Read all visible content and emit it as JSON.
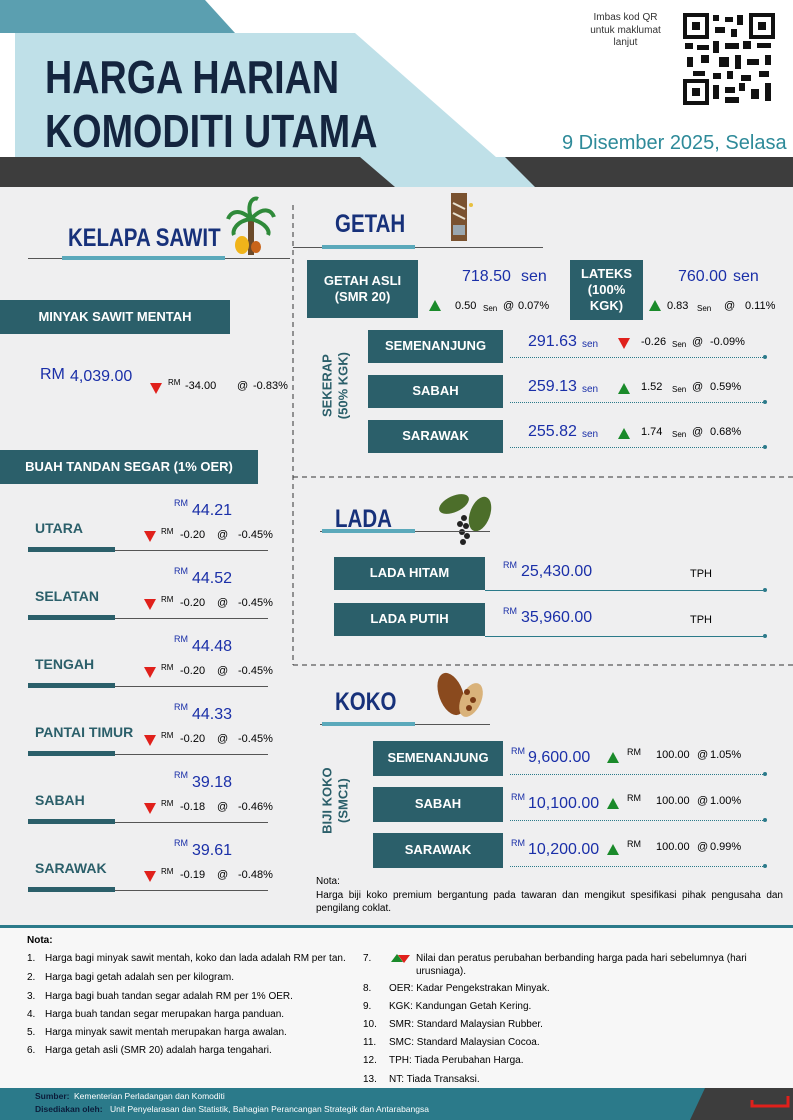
{
  "header": {
    "title_line1": "HARGA HARIAN",
    "title_line2": "KOMODITI UTAMA",
    "qr_text": "Imbas kod QR untuk maklumat lanjut",
    "date": "9 Disember 2025, Selasa"
  },
  "kelapa_sawit": {
    "title": "KELAPA SAWIT",
    "cpo": {
      "label": "MINYAK SAWIT MENTAH",
      "currency": "RM",
      "price": "4,039.00",
      "change_currency": "RM",
      "change": "-34.00",
      "at": "@",
      "pct": "-0.83%"
    },
    "ffb": {
      "label": "BUAH TANDAN SEGAR (1% OER)",
      "regions": [
        {
          "name": "UTARA",
          "currency": "RM",
          "price": "44.21",
          "change_currency": "RM",
          "change": "-0.20",
          "at": "@",
          "pct": "-0.45%"
        },
        {
          "name": "SELATAN",
          "currency": "RM",
          "price": "44.52",
          "change_currency": "RM",
          "change": "-0.20",
          "at": "@",
          "pct": "-0.45%"
        },
        {
          "name": "TENGAH",
          "currency": "RM",
          "price": "44.48",
          "change_currency": "RM",
          "change": "-0.20",
          "at": "@",
          "pct": "-0.45%"
        },
        {
          "name": "PANTAI TIMUR",
          "currency": "RM",
          "price": "44.33",
          "change_currency": "RM",
          "change": "-0.20",
          "at": "@",
          "pct": "-0.45%"
        },
        {
          "name": "SABAH",
          "currency": "RM",
          "price": "39.18",
          "change_currency": "RM",
          "change": "-0.18",
          "at": "@",
          "pct": "-0.46%"
        },
        {
          "name": "SARAWAK",
          "currency": "RM",
          "price": "39.61",
          "change_currency": "RM",
          "change": "-0.19",
          "at": "@",
          "pct": "-0.48%"
        }
      ]
    }
  },
  "getah": {
    "title": "GETAH",
    "smr20": {
      "label": "GETAH ASLI (SMR 20)",
      "price": "718.50",
      "unit": "sen",
      "change": "0.50",
      "change_unit": "Sen",
      "at": "@",
      "pct": "0.07%"
    },
    "lateks": {
      "label": "LATEKS (100% KGK)",
      "price": "760.00",
      "unit": "sen",
      "change": "0.83",
      "change_unit": "Sen",
      "at": "@",
      "pct": "0.11%"
    },
    "sekerap": {
      "label": "SEKERAP (50% KGK)",
      "rows": [
        {
          "name": "SEMENANJUNG",
          "price": "291.63",
          "unit": "sen",
          "change": "-0.26",
          "change_unit": "Sen",
          "at": "@",
          "pct": "-0.09%"
        },
        {
          "name": "SABAH",
          "price": "259.13",
          "unit": "sen",
          "change": "1.52",
          "change_unit": "Sen",
          "at": "@",
          "pct": "0.59%"
        },
        {
          "name": "SARAWAK",
          "price": "255.82",
          "unit": "sen",
          "change": "1.74",
          "change_unit": "Sen",
          "at": "@",
          "pct": "0.68%"
        }
      ]
    }
  },
  "lada": {
    "title": "LADA",
    "rows": [
      {
        "name": "LADA HITAM",
        "currency": "RM",
        "price": "25,430.00",
        "change": "TPH"
      },
      {
        "name": "LADA PUTIH",
        "currency": "RM",
        "price": "35,960.00",
        "change": "TPH"
      }
    ]
  },
  "koko": {
    "title": "KOKO",
    "group_label": "BIJI KOKO (SMC1)",
    "rows": [
      {
        "name": "SEMENANJUNG",
        "currency": "RM",
        "price": "9,600.00",
        "change_currency": "RM",
        "change": "100.00",
        "at": "@",
        "pct": "1.05%"
      },
      {
        "name": "SABAH",
        "currency": "RM",
        "price": "10,100.00",
        "change_currency": "RM",
        "change": "100.00",
        "at": "@",
        "pct": "1.00%"
      },
      {
        "name": "SARAWAK",
        "currency": "RM",
        "price": "10,200.00",
        "change_currency": "RM",
        "change": "100.00",
        "at": "@",
        "pct": "0.99%"
      }
    ],
    "note_title": "Nota:",
    "note": "Harga biji koko premium bergantung pada tawaran dan mengikut spesifikasi pihak pengusaha dan pengilang coklat."
  },
  "notes": {
    "title": "Nota:",
    "items": [
      {
        "num": "1.",
        "text": "Harga bagi minyak sawit mentah, koko dan lada adalah RM per tan."
      },
      {
        "num": "2.",
        "text": "Harga bagi getah adalah sen per kilogram."
      },
      {
        "num": "3.",
        "text": "Harga bagi buah tandan segar adalah RM per 1% OER."
      },
      {
        "num": "4.",
        "text": "Harga buah tandan segar merupakan harga panduan."
      },
      {
        "num": "5.",
        "text": "Harga minyak sawit mentah merupakan harga awalan."
      },
      {
        "num": "6.",
        "text": "Harga getah asli (SMR 20) adalah harga tengahari."
      },
      {
        "num": "7.",
        "text": "Nilai dan peratus perubahan berbanding harga pada hari sebelumnya (hari urusniaga)."
      },
      {
        "num": "8.",
        "text": "OER: Kadar Pengekstrakan Minyak."
      },
      {
        "num": "9.",
        "text": "KGK: Kandungan Getah Kering."
      },
      {
        "num": "10.",
        "text": "SMR: Standard Malaysian Rubber."
      },
      {
        "num": "11.",
        "text": "SMC: Standard Malaysian Cocoa."
      },
      {
        "num": "12.",
        "text": "TPH: Tiada Perubahan Harga."
      },
      {
        "num": "13.",
        "text": "NT: Tiada Transaksi."
      }
    ]
  },
  "footer": {
    "source_label": "Sumber:",
    "source": "Kementerian Perladangan dan Komoditi",
    "prepared_label": "Disediakan oleh:",
    "prepared": "Unit Penyelarasan dan Statistik, Bahagian Perancangan Strategik dan Antarabangsa"
  }
}
